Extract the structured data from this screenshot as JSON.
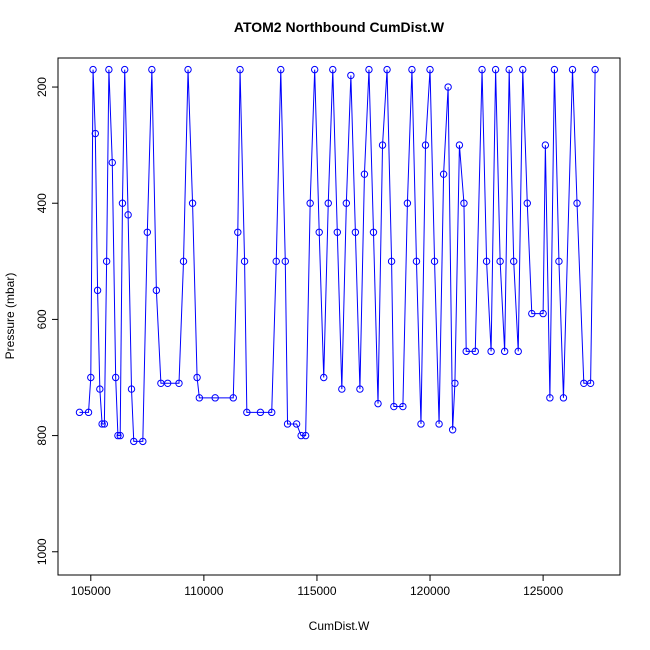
{
  "chart_data": {
    "type": "line",
    "title": "ATOM2 Northbound CumDist.W",
    "x_label": "CumDist.W",
    "y_label": "Pressure (mbar)",
    "series": [
      {
        "name": "pressure",
        "color": "#0000ff",
        "x": [
          104500,
          104900,
          105000,
          105100,
          105200,
          105300,
          105400,
          105500,
          105600,
          105700,
          105800,
          105950,
          106100,
          106200,
          106300,
          106400,
          106500,
          106650,
          106800,
          106900,
          107300,
          107500,
          107700,
          107900,
          108100,
          108400,
          108900,
          109100,
          109300,
          109500,
          109700,
          109800,
          110500,
          111300,
          111500,
          111600,
          111800,
          111900,
          112500,
          113000,
          113200,
          113400,
          113600,
          113700,
          114100,
          114300,
          114500,
          114700,
          114900,
          115100,
          115300,
          115500,
          115700,
          115900,
          116100,
          116300,
          116500,
          116700,
          116900,
          117100,
          117300,
          117500,
          117700,
          117900,
          118100,
          118300,
          118400,
          118800,
          119000,
          119200,
          119400,
          119600,
          119800,
          120000,
          120200,
          120400,
          120600,
          120800,
          121000,
          121100,
          121300,
          121500,
          121600,
          122000,
          122300,
          122500,
          122700,
          122900,
          123100,
          123300,
          123500,
          123700,
          123900,
          124100,
          124300,
          124500,
          125000,
          125100,
          125300,
          125500,
          125700,
          125900,
          126300,
          126500,
          126800,
          127100,
          127300
        ],
        "values": [
          760,
          760,
          700,
          170,
          280,
          550,
          720,
          780,
          780,
          500,
          170,
          330,
          700,
          800,
          800,
          400,
          170,
          420,
          720,
          810,
          810,
          450,
          170,
          550,
          710,
          710,
          710,
          500,
          170,
          400,
          700,
          735,
          735,
          735,
          450,
          170,
          500,
          760,
          760,
          760,
          500,
          170,
          500,
          780,
          780,
          800,
          800,
          400,
          170,
          450,
          700,
          400,
          170,
          450,
          720,
          400,
          180,
          450,
          720,
          350,
          170,
          450,
          745,
          300,
          170,
          500,
          750,
          750,
          400,
          170,
          500,
          780,
          300,
          170,
          500,
          780,
          350,
          200,
          790,
          710,
          300,
          400,
          655,
          655,
          170,
          500,
          655,
          170,
          500,
          655,
          170,
          500,
          655,
          170,
          400,
          590,
          590,
          300,
          735,
          170,
          500,
          735,
          170,
          400,
          710,
          710,
          170
        ]
      }
    ],
    "xlim": [
      103550,
      128400
    ],
    "xticks": [
      105000,
      110000,
      115000,
      120000,
      125000
    ],
    "ylim": [
      1040,
      150
    ],
    "yticks": [
      200,
      400,
      600,
      800,
      1000
    ]
  }
}
